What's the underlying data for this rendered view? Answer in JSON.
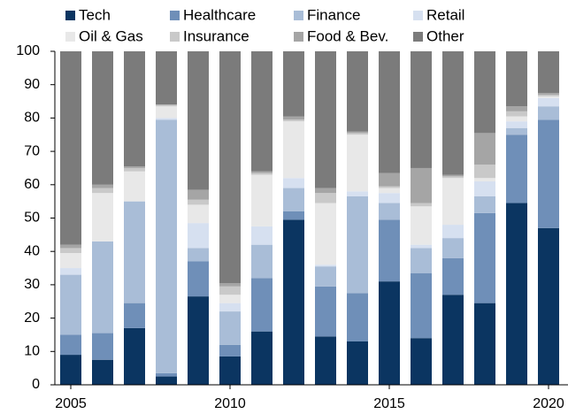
{
  "chart_data": {
    "type": "stacked_bar",
    "categories": [
      "2005",
      null,
      null,
      null,
      null,
      "2010",
      null,
      null,
      null,
      null,
      "2015",
      null,
      null,
      null,
      null,
      "2020"
    ],
    "series": [
      {
        "name": "Tech",
        "color": "#0b3561",
        "values": [
          9,
          7.5,
          17,
          2.5,
          26.5,
          8.5,
          16,
          49.5,
          14.5,
          13,
          31,
          14,
          27,
          24.5,
          54.5,
          47
        ]
      },
      {
        "name": "Healthcare",
        "color": "#6f8fb8",
        "values": [
          6,
          8,
          7.5,
          1,
          10.5,
          3.5,
          16,
          2.5,
          15,
          14.5,
          18.5,
          19.5,
          11,
          27,
          20.5,
          32.5
        ]
      },
      {
        "name": "Finance",
        "color": "#a9bdd7",
        "values": [
          18,
          27.5,
          30.5,
          76,
          4,
          10,
          10,
          7,
          6,
          29,
          5,
          7.5,
          6,
          5,
          2,
          4
        ]
      },
      {
        "name": "Retail",
        "color": "#d6e0f0",
        "values": [
          2,
          0,
          0,
          0.5,
          7.5,
          2.5,
          5.5,
          3,
          0.5,
          1.5,
          3,
          1,
          4,
          4.5,
          2,
          2.5
        ]
      },
      {
        "name": "Oil & Gas",
        "color": "#e8e8e8",
        "values": [
          4.5,
          14.5,
          9,
          3.5,
          5.5,
          2.5,
          15.5,
          17,
          18.5,
          17,
          1.5,
          11.5,
          14,
          1,
          1.5,
          0.5
        ]
      },
      {
        "name": "Insurance",
        "color": "#c9c9c9",
        "values": [
          1.5,
          1.5,
          1,
          0.5,
          1.5,
          2.5,
          0.5,
          0.5,
          3,
          0.5,
          0.5,
          1,
          0.5,
          4,
          1.5,
          0.5
        ]
      },
      {
        "name": "Food & Bev.",
        "color": "#a5a5a5",
        "values": [
          1,
          1,
          0.5,
          0,
          3,
          1,
          0.5,
          1,
          1.5,
          0.5,
          4,
          10.5,
          0.5,
          9.5,
          1.5,
          0.5
        ]
      },
      {
        "name": "Other",
        "color": "#7b7b7b",
        "values": [
          58,
          40,
          34.5,
          16,
          41.5,
          69.5,
          36,
          19.5,
          41,
          24,
          36.5,
          35,
          37,
          24.5,
          16.5,
          12.5
        ]
      }
    ],
    "ylim": [
      0,
      100
    ],
    "yticks": [
      0,
      10,
      20,
      30,
      40,
      50,
      60,
      70,
      80,
      90,
      100
    ],
    "grid": false,
    "legend": "top"
  }
}
